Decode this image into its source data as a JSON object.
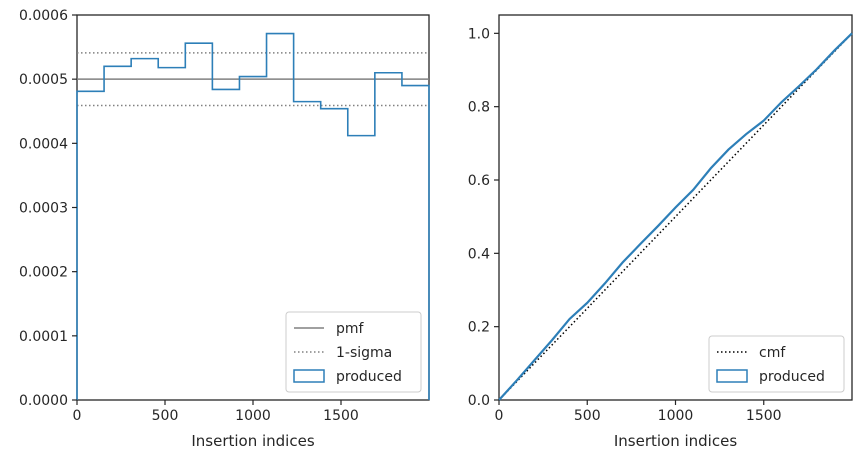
{
  "colors": {
    "produced": "#2d7fb8",
    "pmf": "#808080",
    "sigma": "#808080",
    "cmf": "#000000",
    "axis": "#262626"
  },
  "chart_data": [
    {
      "type": "histogram-step",
      "xlabel": "Insertion indices",
      "ylabel": "",
      "xlim": [
        0,
        2000
      ],
      "ylim": [
        0,
        0.0006
      ],
      "xticks": [
        0,
        500,
        1000,
        1500
      ],
      "yticks": [
        "0.0000",
        "0.0001",
        "0.0002",
        "0.0003",
        "0.0004",
        "0.0005",
        "0.0006"
      ],
      "bin_edges": [
        0,
        153.8,
        307.7,
        461.5,
        615.4,
        769.2,
        923.1,
        1076.9,
        1230.8,
        1384.6,
        1538.5,
        1692.3,
        1846.2,
        2000
      ],
      "produced": [
        0.000481,
        0.00052,
        0.000532,
        0.000518,
        0.000556,
        0.000484,
        0.000504,
        0.000571,
        0.000465,
        0.000454,
        0.000412,
        0.00051,
        0.00049
      ],
      "pmf": 0.0005,
      "sigma_upper": 0.000541,
      "sigma_lower": 0.000459,
      "legend_loc": "lower right",
      "legend": [
        {
          "label": "pmf",
          "style": "solid"
        },
        {
          "label": "1-sigma",
          "style": "dotted"
        },
        {
          "label": "produced",
          "style": "patch"
        }
      ]
    },
    {
      "type": "line",
      "xlabel": "Insertion indices",
      "ylabel": "",
      "xlim": [
        0,
        2000
      ],
      "ylim": [
        0,
        1.05
      ],
      "xticks": [
        0,
        500,
        1000,
        1500
      ],
      "yticks": [
        "0.0",
        "0.2",
        "0.4",
        "0.6",
        "0.8",
        "1.0"
      ],
      "produced_x": [
        0,
        100,
        200,
        300,
        400,
        500,
        600,
        700,
        800,
        900,
        1000,
        1100,
        1200,
        1300,
        1400,
        1500,
        1600,
        1700,
        1800,
        1900,
        2000
      ],
      "produced_y": [
        0,
        0.053,
        0.108,
        0.163,
        0.221,
        0.265,
        0.318,
        0.375,
        0.425,
        0.474,
        0.525,
        0.573,
        0.632,
        0.683,
        0.725,
        0.762,
        0.812,
        0.856,
        0.902,
        0.953,
        1.0
      ],
      "cmf_x": [
        0,
        2000
      ],
      "cmf_y": [
        0,
        1.0
      ],
      "legend_loc": "lower right",
      "legend": [
        {
          "label": "cmf",
          "style": "dotted"
        },
        {
          "label": "produced",
          "style": "patch"
        }
      ]
    }
  ]
}
